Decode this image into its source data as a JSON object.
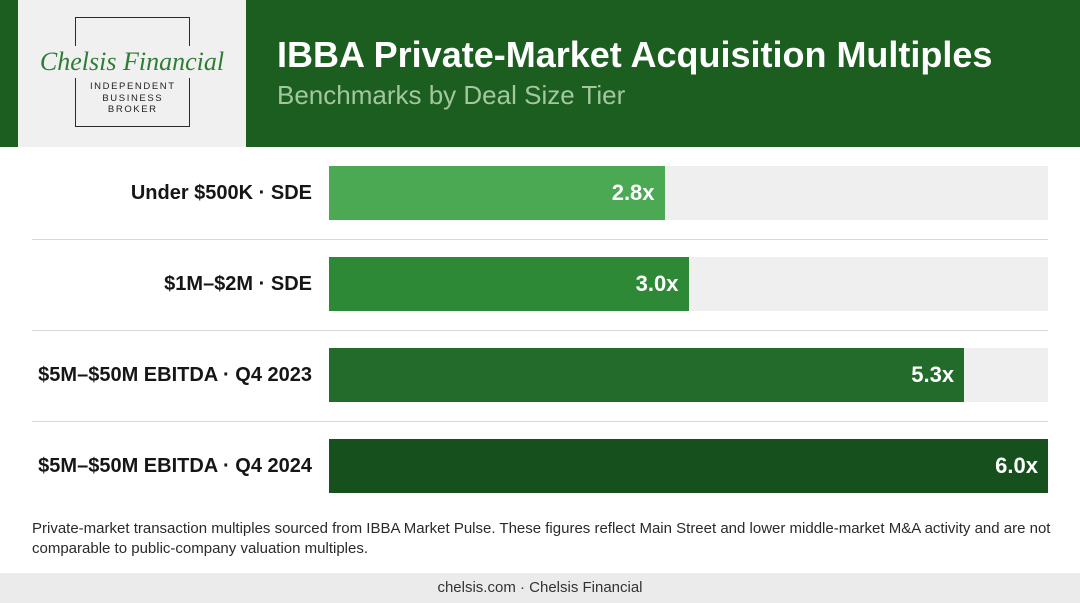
{
  "logo": {
    "name": "Chelsis Financial",
    "tagline": [
      "INDEPENDENT",
      "BUSINESS",
      "BROKER"
    ]
  },
  "chart_data": {
    "type": "bar",
    "orientation": "horizontal",
    "title": "IBBA Private-Market Acquisition Multiples",
    "subtitle": "Benchmarks by Deal Size Tier",
    "categories": [
      "Under $500K · SDE",
      "$1M–$2M · SDE",
      "$5M–$50M EBITDA · Q4 2023",
      "$5M–$50M EBITDA · Q4 2024"
    ],
    "values": [
      2.8,
      3.0,
      5.3,
      6.0
    ],
    "data_labels": [
      "2.8x",
      "3.0x",
      "5.3x",
      "6.0x"
    ],
    "xlim": [
      0,
      6.0
    ],
    "grid": false,
    "legend": "none",
    "bar_colors": [
      "#4aa952",
      "#2e8937",
      "#236b2a",
      "#16501c"
    ],
    "track_color": "#efefef"
  },
  "footnote": "Private-market transaction multiples sourced from IBBA Market Pulse. These figures reflect Main Street and lower middle-market M&A activity and are not comparable to public-company valuation multiples.",
  "footer": {
    "text": "chelsis.com · Chelsis Financial"
  },
  "theme": {
    "header_green": "#1b5e20",
    "logo_bg": "#f0f0f0",
    "logo_green": "#2f7d35",
    "subtitle_green": "#a3c79e",
    "footer_bg": "#ebebeb"
  }
}
